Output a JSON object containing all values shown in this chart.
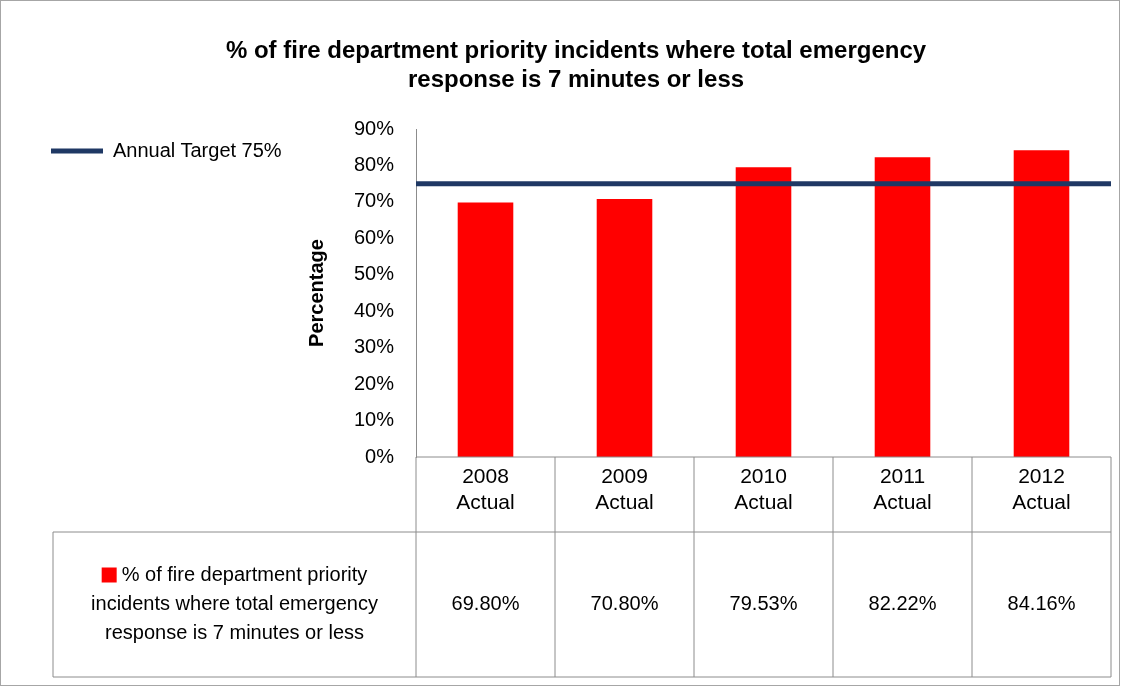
{
  "chart_data": {
    "type": "bar",
    "title": "% of fire department priority incidents where total emergency response is 7 minutes or less",
    "ylabel": "Percentage",
    "categories": [
      "2008 Actual",
      "2009 Actual",
      "2010 Actual",
      "2011 Actual",
      "2012 Actual"
    ],
    "series": [
      {
        "name": "% of fire department priority incidents where total emergency response is 7 minutes or less",
        "color": "#ff0000",
        "values": [
          69.8,
          70.8,
          79.53,
          82.22,
          84.16
        ],
        "value_labels": [
          "69.80%",
          "70.80%",
          "79.53%",
          "82.22%",
          "84.16%"
        ]
      }
    ],
    "ylim": [
      0,
      90
    ],
    "yticks": [
      {
        "value": 0,
        "label": "0%"
      },
      {
        "value": 10,
        "label": "10%"
      },
      {
        "value": 20,
        "label": "20%"
      },
      {
        "value": 30,
        "label": "30%"
      },
      {
        "value": 40,
        "label": "40%"
      },
      {
        "value": 50,
        "label": "50%"
      },
      {
        "value": 60,
        "label": "60%"
      },
      {
        "value": 70,
        "label": "70%"
      },
      {
        "value": 80,
        "label": "80%"
      },
      {
        "value": 90,
        "label": "90%"
      }
    ],
    "ref_lines": [
      {
        "axis": "y",
        "value": 75,
        "label": "Annual Target 75%",
        "color": "#1f3864"
      }
    ],
    "grid": false,
    "legend": "bottom"
  }
}
